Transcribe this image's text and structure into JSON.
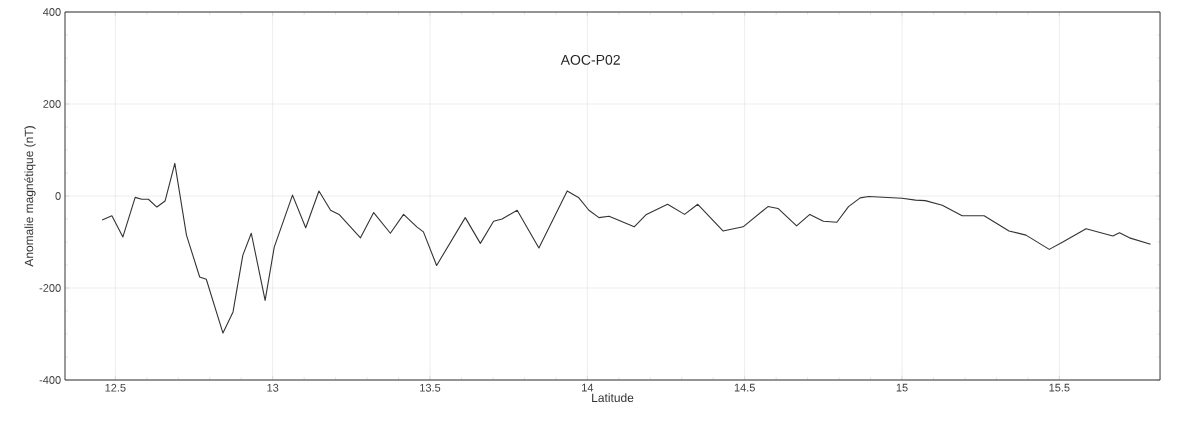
{
  "chart_data": {
    "type": "line",
    "title": "AOC-P02",
    "xlabel": "Latitude",
    "ylabel": "Anomalie magnétique (nT)",
    "x": [
      12.458,
      12.489,
      12.524,
      12.563,
      12.584,
      12.605,
      12.632,
      12.658,
      12.689,
      12.726,
      12.768,
      12.789,
      12.842,
      12.874,
      12.905,
      12.932,
      12.976,
      13.005,
      13.063,
      13.105,
      13.147,
      13.184,
      13.211,
      13.279,
      13.321,
      13.374,
      13.416,
      13.458,
      13.479,
      13.521,
      13.612,
      13.66,
      13.702,
      13.729,
      13.777,
      13.846,
      13.936,
      13.973,
      14.005,
      14.037,
      14.069,
      14.149,
      14.186,
      14.255,
      14.309,
      14.351,
      14.431,
      14.495,
      14.574,
      14.606,
      14.665,
      14.707,
      14.75,
      14.793,
      14.83,
      14.867,
      14.894,
      15.0,
      15.043,
      15.074,
      15.128,
      15.191,
      15.261,
      15.34,
      15.394,
      15.468,
      15.511,
      15.585,
      15.67,
      15.691,
      15.723,
      15.79
    ],
    "values": [
      -52,
      -43,
      -89,
      -3,
      -7,
      -7,
      -24,
      -11,
      71,
      -85,
      -176,
      -181,
      -298,
      -252,
      -129,
      -81,
      -227,
      -111,
      2,
      -69,
      11,
      -31,
      -40,
      -91,
      -36,
      -81,
      -40,
      -67,
      -78,
      -151,
      -47,
      -103,
      -55,
      -50,
      -31,
      -113,
      11,
      -4,
      -31,
      -47,
      -44,
      -67,
      -41,
      -18,
      -40,
      -18,
      -76,
      -67,
      -23,
      -27,
      -65,
      -40,
      -55,
      -57,
      -23,
      -4,
      -1,
      -5,
      -9,
      -10,
      -20,
      -43,
      -43,
      -76,
      -85,
      -116,
      -100,
      -71,
      -87,
      -80,
      -91,
      -105
    ],
    "color": "#333333",
    "xlim": [
      12.34,
      15.82
    ],
    "ylim": [
      -400,
      400
    ],
    "xticks": [
      12.5,
      13,
      13.5,
      14,
      14.5,
      15,
      15.5
    ],
    "yticks": [
      -400,
      -200,
      0,
      200,
      400
    ],
    "grid": true
  }
}
